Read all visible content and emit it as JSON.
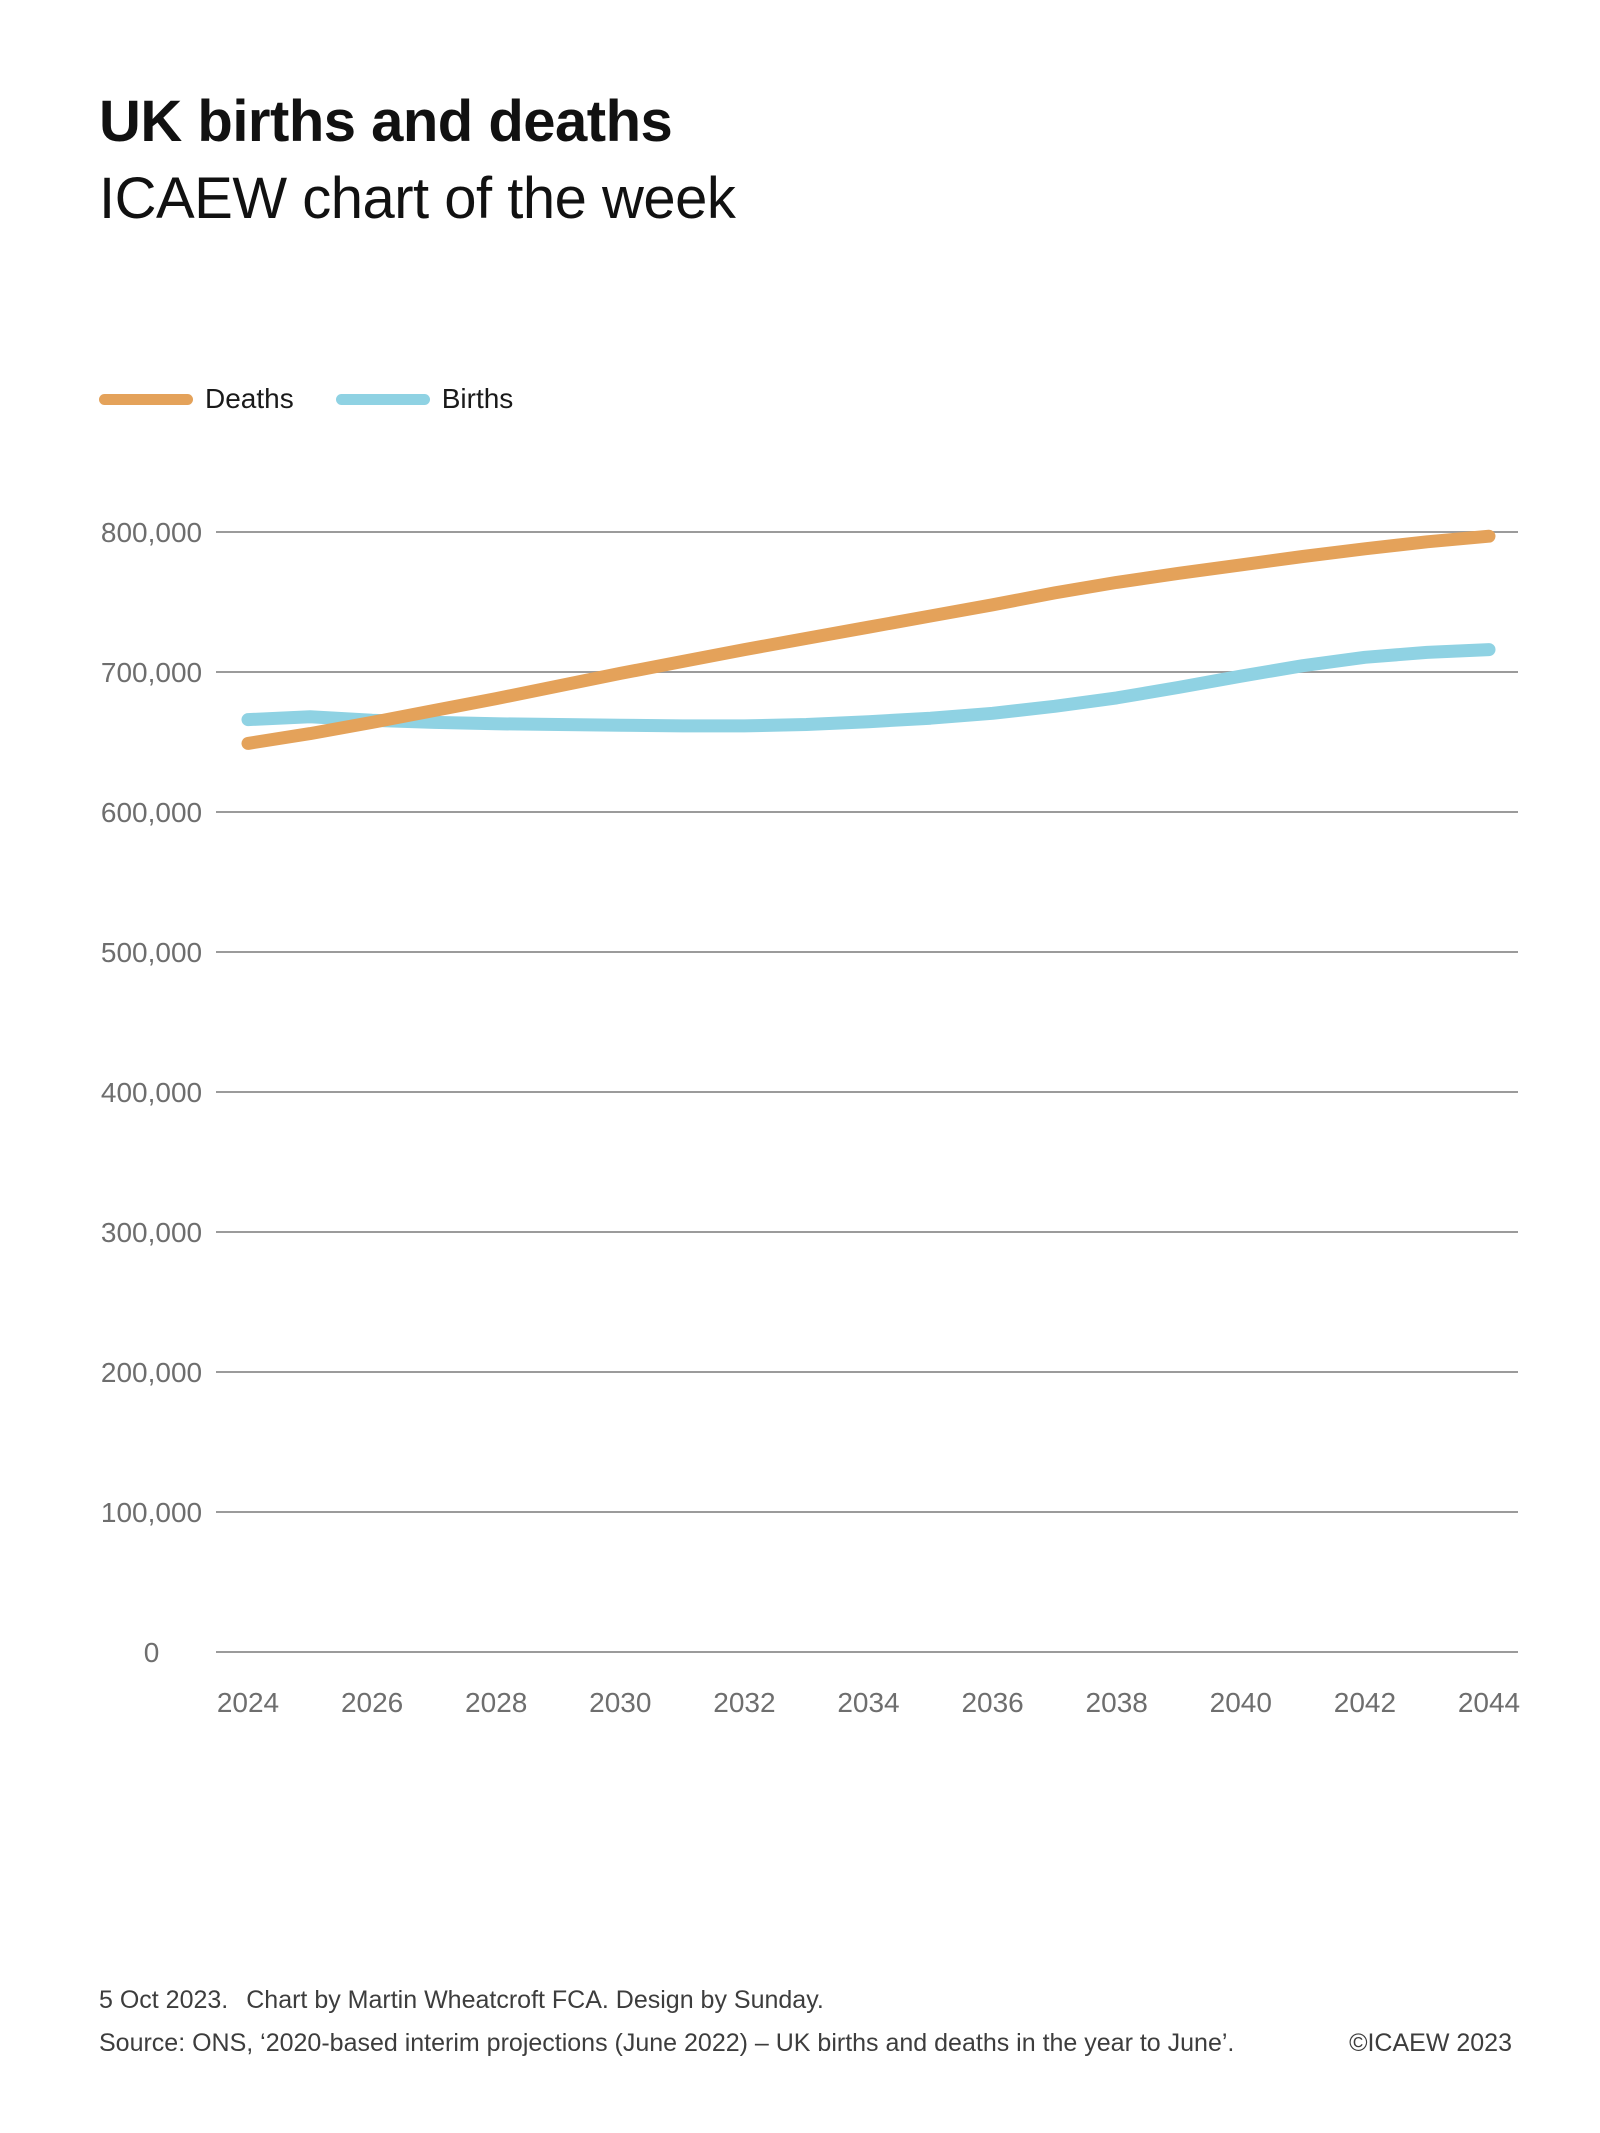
{
  "header": {
    "title": "UK births and deaths",
    "subtitle": "ICAEW chart of the week"
  },
  "legend": [
    {
      "label": "Deaths",
      "color": "#E4A25A"
    },
    {
      "label": "Births",
      "color": "#8FD2E3"
    }
  ],
  "chart_data": {
    "type": "line",
    "title": "UK births and deaths",
    "xlabel": "",
    "ylabel": "",
    "ylim": [
      0,
      800000
    ],
    "xlim": [
      2024,
      2044
    ],
    "grid": "horizontal",
    "grid_color": "#9B9B9B",
    "tick_label_color": "#6E6E6E",
    "legend_position": "top-left",
    "x": [
      2024,
      2025,
      2026,
      2027,
      2028,
      2029,
      2030,
      2031,
      2032,
      2033,
      2034,
      2035,
      2036,
      2037,
      2038,
      2039,
      2040,
      2041,
      2042,
      2043,
      2044
    ],
    "series": [
      {
        "name": "Deaths",
        "color": "#E4A25A",
        "values": [
          649000,
          656000,
          664000,
          672500,
          681000,
          690000,
          699000,
          707500,
          716000,
          724000,
          732000,
          740000,
          748000,
          756500,
          764000,
          770500,
          776500,
          782500,
          788000,
          793000,
          797000
        ]
      },
      {
        "name": "Births",
        "color": "#8FD2E3",
        "values": [
          666000,
          668000,
          665500,
          664000,
          663000,
          662500,
          662000,
          661500,
          661500,
          662500,
          664500,
          667000,
          670500,
          675500,
          681500,
          689000,
          697000,
          704500,
          710500,
          714000,
          716000
        ]
      }
    ],
    "y_ticks": [
      {
        "value": 800000,
        "label": "800,000"
      },
      {
        "value": 700000,
        "label": "700,000"
      },
      {
        "value": 600000,
        "label": "600,000"
      },
      {
        "value": 500000,
        "label": "500,000"
      },
      {
        "value": 400000,
        "label": "400,000"
      },
      {
        "value": 300000,
        "label": "300,000"
      },
      {
        "value": 200000,
        "label": "200,000"
      },
      {
        "value": 100000,
        "label": "100,000"
      },
      {
        "value": 0,
        "label": "0"
      }
    ],
    "x_ticks": [
      {
        "value": 2024,
        "label": "2024"
      },
      {
        "value": 2026,
        "label": "2026"
      },
      {
        "value": 2028,
        "label": "2028"
      },
      {
        "value": 2030,
        "label": "2030"
      },
      {
        "value": 2032,
        "label": "2032"
      },
      {
        "value": 2034,
        "label": "2034"
      },
      {
        "value": 2036,
        "label": "2036"
      },
      {
        "value": 2038,
        "label": "2038"
      },
      {
        "value": 2040,
        "label": "2040"
      },
      {
        "value": 2042,
        "label": "2042"
      },
      {
        "value": 2044,
        "label": "2044"
      }
    ]
  },
  "footer": {
    "date": "5 Oct 2023.",
    "credit": "Chart by Martin Wheatcroft FCA. Design by Sunday.",
    "source": "Source: ONS, ‘2020-based interim projections (June 2022) – UK births and deaths in the year to June’.",
    "copyright": "©ICAEW 2023"
  }
}
